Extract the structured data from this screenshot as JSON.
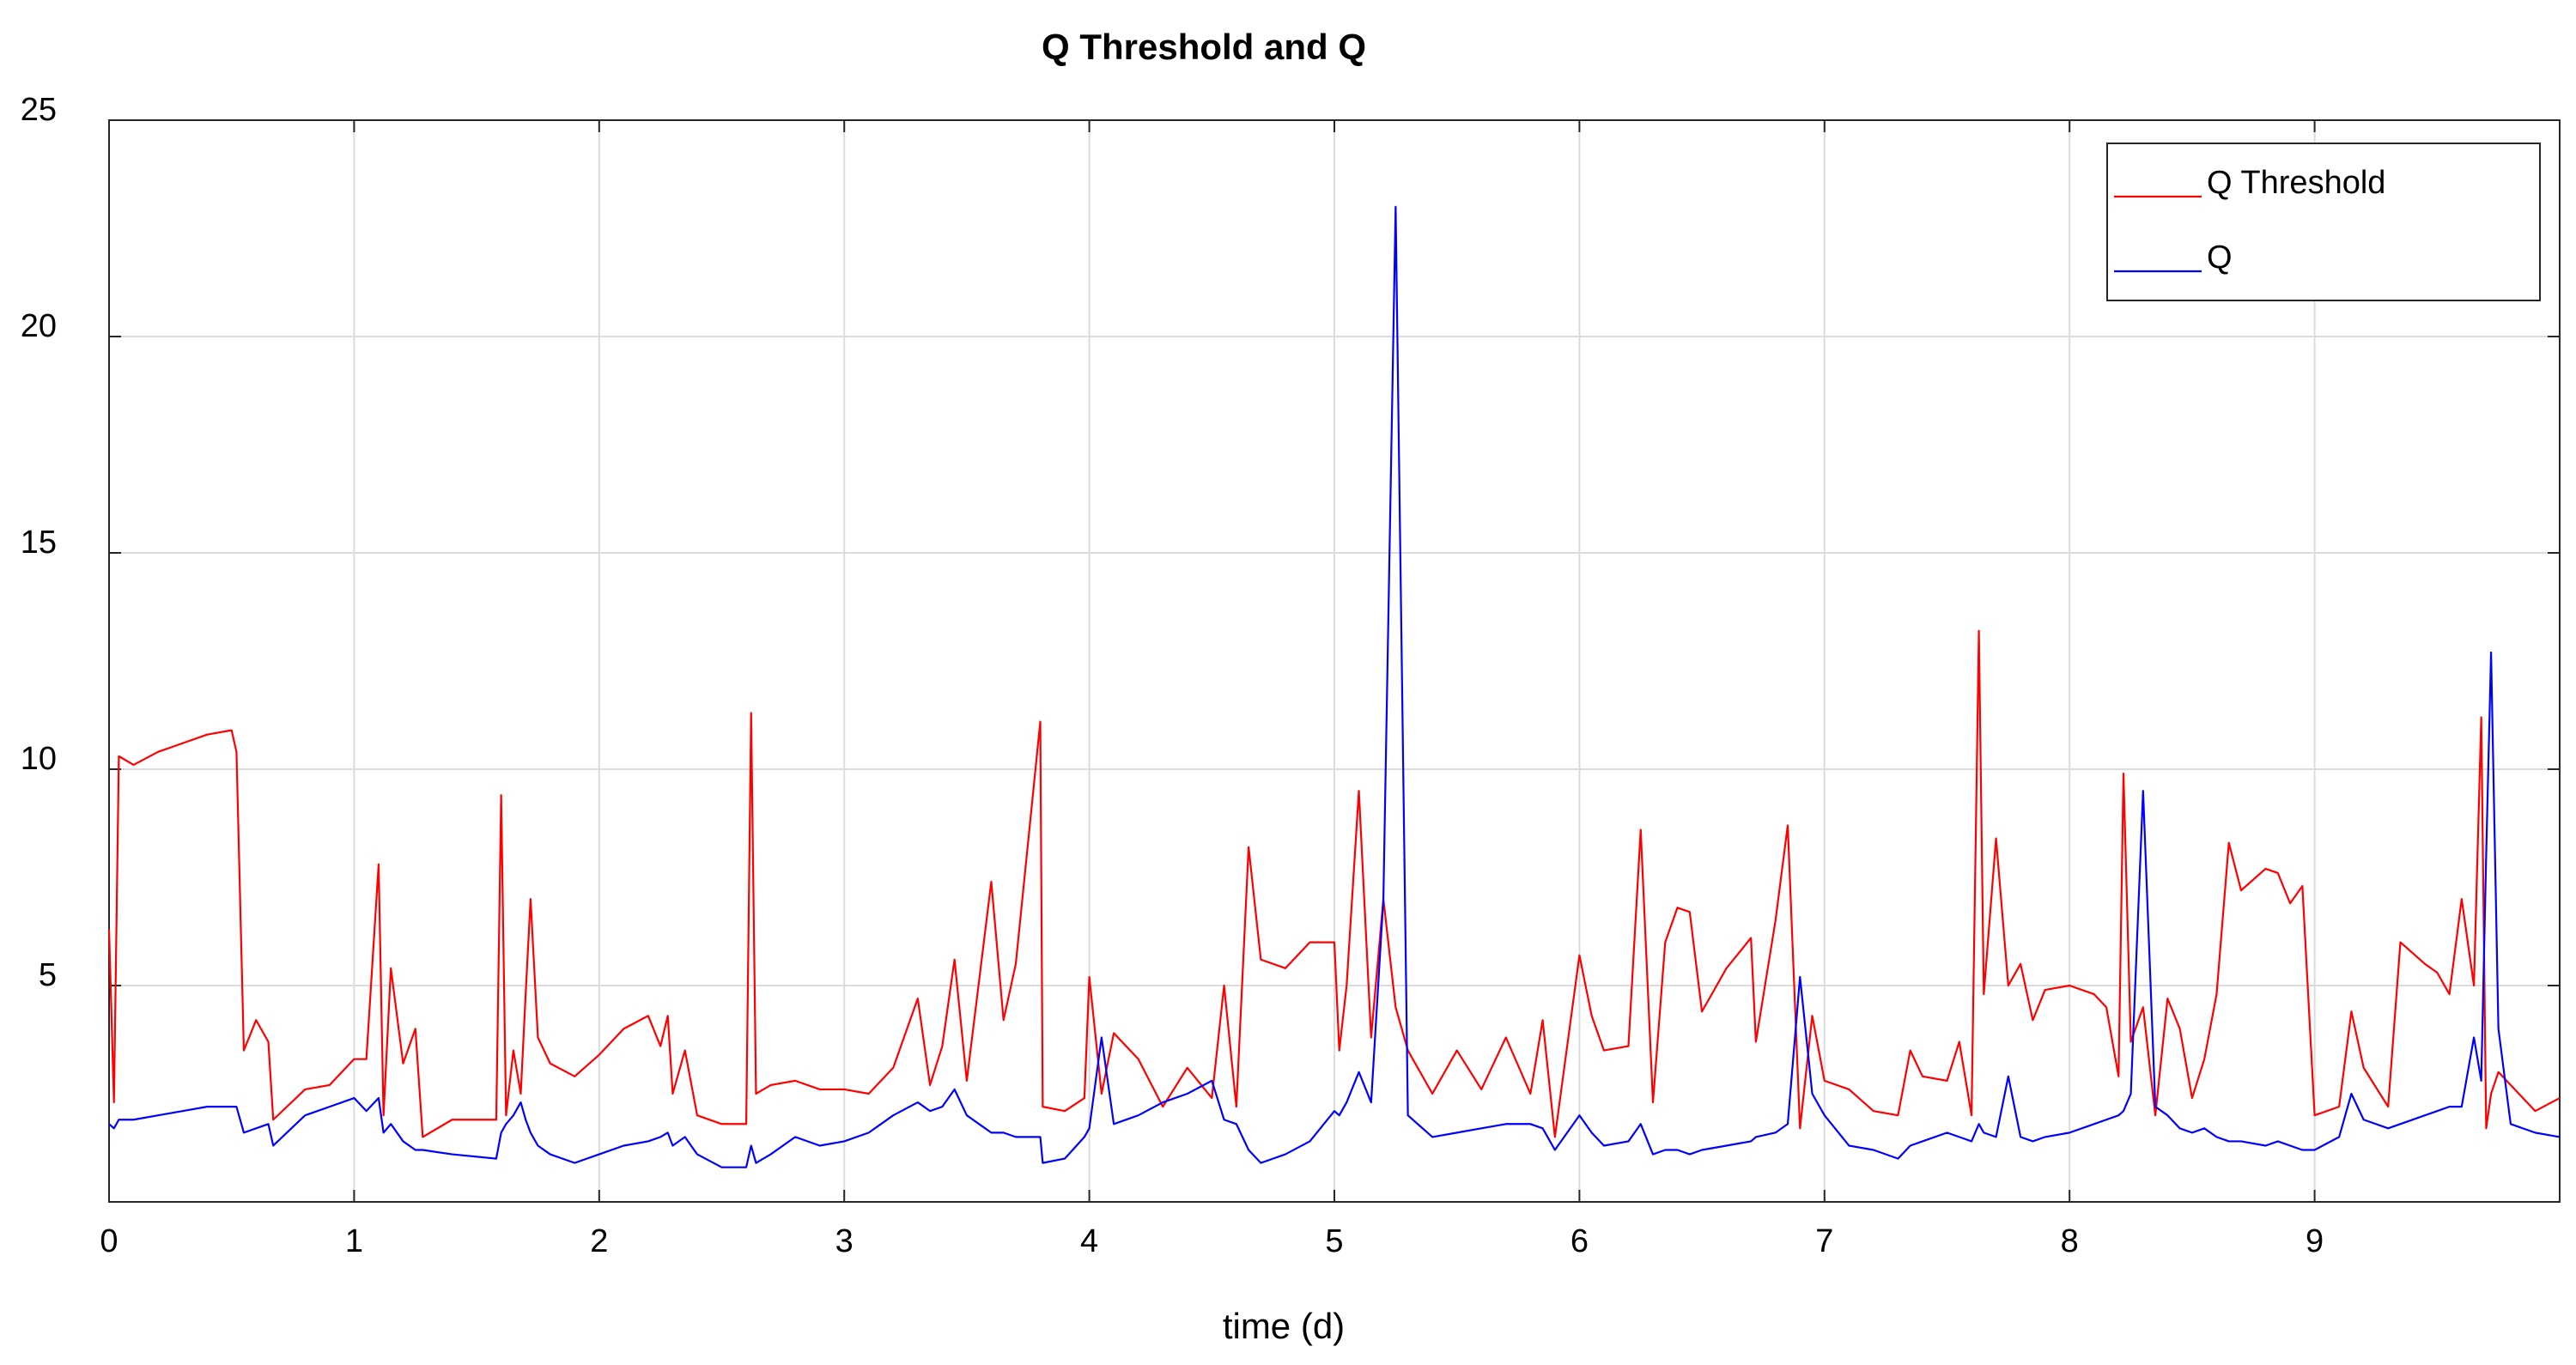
{
  "chart_data": {
    "type": "line",
    "title": "Q Threshold and Q",
    "x_label": "time (d)",
    "xlim": [
      0,
      10
    ],
    "xticks": [
      0,
      1,
      2,
      3,
      4,
      5,
      6,
      7,
      8,
      9
    ],
    "ylim": [
      0,
      25
    ],
    "yticks": [
      5,
      10,
      15,
      20,
      25
    ],
    "grid": true,
    "legend": "upper right",
    "x": [
      0,
      0.02,
      0.04,
      0.1,
      0.2,
      0.3,
      0.4,
      0.5,
      0.52,
      0.55,
      0.6,
      0.65,
      0.67,
      0.8,
      0.9,
      1.0,
      1.05,
      1.1,
      1.12,
      1.15,
      1.2,
      1.25,
      1.28,
      1.4,
      1.58,
      1.6,
      1.62,
      1.65,
      1.68,
      1.7,
      1.72,
      1.75,
      1.8,
      1.9,
      2.0,
      2.1,
      2.2,
      2.25,
      2.28,
      2.3,
      2.35,
      2.4,
      2.5,
      2.6,
      2.62,
      2.64,
      2.7,
      2.8,
      2.9,
      3.0,
      3.1,
      3.2,
      3.3,
      3.35,
      3.4,
      3.45,
      3.5,
      3.6,
      3.65,
      3.7,
      3.8,
      3.81,
      3.9,
      3.98,
      4.0,
      4.05,
      4.1,
      4.2,
      4.3,
      4.4,
      4.5,
      4.55,
      4.6,
      4.65,
      4.7,
      4.8,
      4.9,
      5.0,
      5.02,
      5.05,
      5.1,
      5.15,
      5.2,
      5.25,
      5.3,
      5.4,
      5.5,
      5.6,
      5.7,
      5.8,
      5.85,
      5.9,
      6.0,
      6.05,
      6.1,
      6.2,
      6.25,
      6.3,
      6.35,
      6.4,
      6.45,
      6.5,
      6.6,
      6.7,
      6.72,
      6.8,
      6.85,
      6.9,
      6.95,
      7.0,
      7.1,
      7.2,
      7.3,
      7.35,
      7.4,
      7.5,
      7.55,
      7.6,
      7.63,
      7.65,
      7.7,
      7.75,
      7.8,
      7.85,
      7.9,
      8.0,
      8.1,
      8.15,
      8.2,
      8.22,
      8.25,
      8.3,
      8.35,
      8.4,
      8.45,
      8.5,
      8.55,
      8.6,
      8.65,
      8.7,
      8.8,
      8.85,
      8.9,
      8.95,
      9.0,
      9.1,
      9.15,
      9.2,
      9.3,
      9.35,
      9.45,
      9.5,
      9.55,
      9.6,
      9.65,
      9.68,
      9.7,
      9.72,
      9.75,
      9.8,
      9.9,
      10.0
    ],
    "series": [
      {
        "name": "Q Threshold",
        "color": "#ff0000",
        "values": [
          6.3,
          2.3,
          10.3,
          10.1,
          10.4,
          10.6,
          10.8,
          10.9,
          10.4,
          3.5,
          4.2,
          3.7,
          1.9,
          2.6,
          2.7,
          3.3,
          3.3,
          7.8,
          2.0,
          5.4,
          3.2,
          4.0,
          1.5,
          1.9,
          1.9,
          9.4,
          2.0,
          3.5,
          2.5,
          4.8,
          7.0,
          3.8,
          3.2,
          2.9,
          3.4,
          4.0,
          4.3,
          3.6,
          4.3,
          2.5,
          3.5,
          2.0,
          1.8,
          1.8,
          11.3,
          2.5,
          2.7,
          2.8,
          2.6,
          2.6,
          2.5,
          3.1,
          4.7,
          2.7,
          3.6,
          5.6,
          2.8,
          7.4,
          4.2,
          5.5,
          11.1,
          2.2,
          2.1,
          2.4,
          5.2,
          2.5,
          3.9,
          3.3,
          2.2,
          3.1,
          2.4,
          5.0,
          2.2,
          8.2,
          5.6,
          5.4,
          6.0,
          6.0,
          3.5,
          5.0,
          9.5,
          3.8,
          7.0,
          4.5,
          3.5,
          2.5,
          3.5,
          2.6,
          3.8,
          2.5,
          4.2,
          1.5,
          5.7,
          4.3,
          3.5,
          3.6,
          8.6,
          2.3,
          6.0,
          6.8,
          6.7,
          4.4,
          5.4,
          6.1,
          3.7,
          6.5,
          8.7,
          1.7,
          4.3,
          2.8,
          2.6,
          2.1,
          2.0,
          3.5,
          2.9,
          2.8,
          3.7,
          2.0,
          13.2,
          4.8,
          8.4,
          5.0,
          5.5,
          4.2,
          4.9,
          5.0,
          4.8,
          4.5,
          2.9,
          9.9,
          3.7,
          4.5,
          2.0,
          4.7,
          4.0,
          2.4,
          3.3,
          4.8,
          8.3,
          7.2,
          7.7,
          7.6,
          6.9,
          7.3,
          2.0,
          2.2,
          4.4,
          3.1,
          2.2,
          6.0,
          5.5,
          5.3,
          4.8,
          7.0,
          5.0,
          11.2,
          1.7,
          2.5,
          3.0,
          2.7,
          2.1,
          2.4
        ]
      },
      {
        "name": "Q",
        "color": "#0000ff",
        "values": [
          1.8,
          1.7,
          1.9,
          1.9,
          2.0,
          2.1,
          2.2,
          2.2,
          2.2,
          1.6,
          1.7,
          1.8,
          1.3,
          2.0,
          2.2,
          2.4,
          2.1,
          2.4,
          1.6,
          1.8,
          1.4,
          1.2,
          1.2,
          1.1,
          1.0,
          1.6,
          1.8,
          2.0,
          2.3,
          1.9,
          1.6,
          1.3,
          1.1,
          0.9,
          1.1,
          1.3,
          1.4,
          1.5,
          1.6,
          1.3,
          1.5,
          1.1,
          0.8,
          0.8,
          1.3,
          0.9,
          1.1,
          1.5,
          1.3,
          1.4,
          1.6,
          2.0,
          2.3,
          2.1,
          2.2,
          2.6,
          2.0,
          1.6,
          1.6,
          1.5,
          1.5,
          0.9,
          1.0,
          1.5,
          1.7,
          3.8,
          1.8,
          2.0,
          2.3,
          2.5,
          2.8,
          1.9,
          1.8,
          1.2,
          0.9,
          1.1,
          1.4,
          2.1,
          2.0,
          2.3,
          3.0,
          2.3,
          7.0,
          23.0,
          2.0,
          1.5,
          1.6,
          1.7,
          1.8,
          1.8,
          1.7,
          1.2,
          2.0,
          1.6,
          1.3,
          1.4,
          1.8,
          1.1,
          1.2,
          1.2,
          1.1,
          1.2,
          1.3,
          1.4,
          1.5,
          1.6,
          1.8,
          5.2,
          2.5,
          2.0,
          1.3,
          1.2,
          1.0,
          1.3,
          1.4,
          1.6,
          1.5,
          1.4,
          1.8,
          1.6,
          1.5,
          2.9,
          1.5,
          1.4,
          1.5,
          1.6,
          1.8,
          1.9,
          2.0,
          2.1,
          2.5,
          9.5,
          2.2,
          2.0,
          1.7,
          1.6,
          1.7,
          1.5,
          1.4,
          1.4,
          1.3,
          1.4,
          1.3,
          1.2,
          1.2,
          1.5,
          2.5,
          1.9,
          1.7,
          1.8,
          2.0,
          2.1,
          2.2,
          2.2,
          3.8,
          2.8,
          8.0,
          12.7,
          4.0,
          1.8,
          1.6,
          1.5
        ]
      }
    ]
  }
}
